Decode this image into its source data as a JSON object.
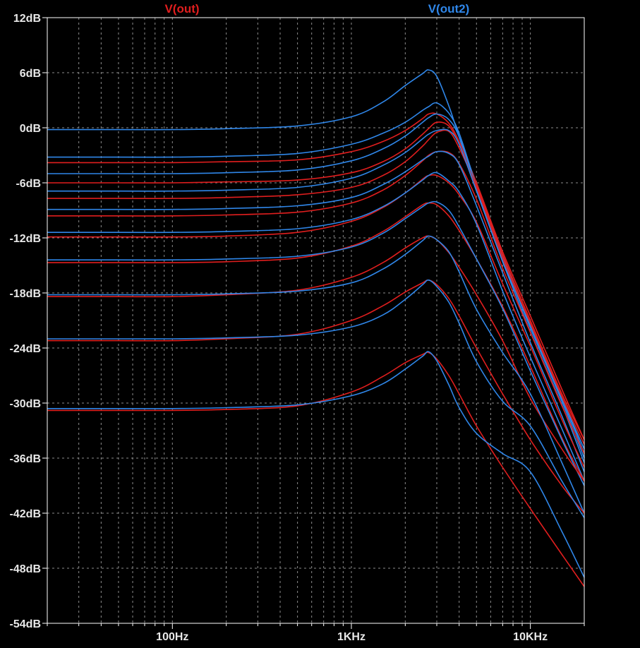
{
  "colors": {
    "background": "#000000",
    "frame": "#ffffff",
    "grid": "#8c8c8c",
    "tick_text": "#e8e8e8",
    "out": "#e01e1e",
    "out2": "#2f86e8"
  },
  "chart_data": {
    "type": "line",
    "title": "",
    "xlabel": "",
    "ylabel": "",
    "xscale": "log",
    "xlim_hz": [
      20,
      20000
    ],
    "ylim_db": [
      -54,
      12
    ],
    "grid": true,
    "legend_placement": "top",
    "legend": [
      "V(out)",
      "V(out2)"
    ],
    "x_ticks": [
      "100Hz",
      "1KHz",
      "10KHz"
    ],
    "y_ticks": [
      "12dB",
      "6dB",
      "0dB",
      "-6dB",
      "-12dB",
      "-18dB",
      "-24dB",
      "-30dB",
      "-36dB",
      "-42dB",
      "-48dB",
      "-54dB"
    ],
    "x_hz": [
      20,
      50,
      100,
      200,
      500,
      1000,
      1500,
      2000,
      2500,
      2700,
      3000,
      3500,
      4000,
      5000,
      7000,
      10000,
      15000,
      20000
    ],
    "series": [
      {
        "trace": "V(out2)",
        "values": [
          -0.2,
          -0.2,
          -0.2,
          -0.1,
          0.2,
          1.2,
          2.8,
          4.6,
          5.9,
          6.3,
          5.6,
          2.4,
          -1.0,
          -6.8,
          -14.5,
          -21.5,
          -29.5,
          -35.0
        ]
      },
      {
        "trace": "V(out)",
        "values": [
          -3.8,
          -3.8,
          -3.8,
          -3.7,
          -3.5,
          -2.6,
          -1.5,
          -0.3,
          1.0,
          1.5,
          1.5,
          0.5,
          -1.5,
          -6.0,
          -13.5,
          -20.5,
          -28.5,
          -34.0
        ]
      },
      {
        "trace": "V(out2)",
        "values": [
          -3.2,
          -3.2,
          -3.2,
          -3.1,
          -2.8,
          -1.8,
          -0.6,
          0.6,
          1.9,
          2.3,
          2.7,
          1.6,
          -0.6,
          -6.3,
          -14.0,
          -21.5,
          -29.5,
          -35.5
        ]
      },
      {
        "trace": "V(out)",
        "values": [
          -6.0,
          -6.0,
          -6.0,
          -5.9,
          -5.7,
          -4.9,
          -3.7,
          -2.3,
          -0.7,
          -0.1,
          0.6,
          0.2,
          -1.8,
          -6.2,
          -13.8,
          -21.0,
          -29.0,
          -34.0
        ]
      },
      {
        "trace": "V(out2)",
        "values": [
          -5.0,
          -5.0,
          -5.0,
          -4.9,
          -4.6,
          -3.6,
          -2.3,
          -0.9,
          0.6,
          1.1,
          1.5,
          0.9,
          -1.0,
          -6.5,
          -14.2,
          -21.8,
          -29.8,
          -36.0
        ]
      },
      {
        "trace": "V(out)",
        "values": [
          -7.7,
          -7.7,
          -7.7,
          -7.6,
          -7.3,
          -6.5,
          -5.2,
          -3.7,
          -2.0,
          -1.3,
          -0.5,
          -0.4,
          -2.2,
          -6.5,
          -14.2,
          -21.3,
          -29.3,
          -34.5
        ]
      },
      {
        "trace": "V(out2)",
        "values": [
          -6.9,
          -6.9,
          -6.9,
          -6.8,
          -6.5,
          -5.5,
          -4.1,
          -2.7,
          -1.2,
          -0.7,
          -0.3,
          -0.3,
          -1.8,
          -6.9,
          -14.6,
          -22.2,
          -30.2,
          -36.5
        ]
      },
      {
        "trace": "V(out)",
        "values": [
          -9.6,
          -9.6,
          -9.6,
          -9.5,
          -9.2,
          -8.2,
          -6.8,
          -5.2,
          -3.6,
          -3.0,
          -2.6,
          -2.7,
          -3.9,
          -7.8,
          -15.3,
          -22.3,
          -30.3,
          -35.5
        ]
      },
      {
        "trace": "V(out2)",
        "values": [
          -8.9,
          -8.9,
          -8.9,
          -8.8,
          -8.5,
          -7.6,
          -6.2,
          -4.8,
          -3.5,
          -3.1,
          -2.6,
          -2.8,
          -4.0,
          -8.5,
          -15.8,
          -23.4,
          -31.4,
          -37.5
        ]
      },
      {
        "trace": "V(out)",
        "values": [
          -11.9,
          -11.9,
          -11.9,
          -11.8,
          -11.4,
          -10.2,
          -8.7,
          -7.1,
          -5.6,
          -5.2,
          -5.2,
          -6.0,
          -7.3,
          -10.3,
          -17.0,
          -23.8,
          -31.8,
          -37.0
        ]
      },
      {
        "trace": "V(out2)",
        "values": [
          -11.4,
          -11.4,
          -11.4,
          -11.3,
          -11.0,
          -10.0,
          -8.6,
          -7.1,
          -5.7,
          -5.2,
          -4.9,
          -5.8,
          -7.0,
          -10.5,
          -17.8,
          -25.0,
          -32.8,
          -38.5
        ]
      },
      {
        "trace": "V(out)",
        "values": [
          -14.7,
          -14.7,
          -14.7,
          -14.6,
          -14.2,
          -12.9,
          -11.3,
          -9.7,
          -8.4,
          -8.2,
          -8.4,
          -9.6,
          -11.2,
          -14.3,
          -19.5,
          -26.0,
          -33.8,
          -38.5
        ]
      },
      {
        "trace": "V(out2)",
        "values": [
          -14.4,
          -14.4,
          -14.4,
          -14.3,
          -14.0,
          -13.0,
          -11.5,
          -9.9,
          -8.6,
          -8.2,
          -8.1,
          -9.0,
          -10.8,
          -14.3,
          -19.7,
          -26.5,
          -34.0,
          -39.0
        ]
      },
      {
        "trace": "V(out)",
        "values": [
          -18.4,
          -18.4,
          -18.4,
          -18.2,
          -17.7,
          -16.3,
          -14.7,
          -13.1,
          -12.0,
          -11.8,
          -12.2,
          -13.6,
          -15.2,
          -18.2,
          -23.2,
          -29.5,
          -35.0,
          -38.5
        ]
      },
      {
        "trace": "V(out2)",
        "values": [
          -18.2,
          -18.2,
          -18.2,
          -18.1,
          -17.8,
          -16.9,
          -15.4,
          -13.8,
          -12.3,
          -11.8,
          -12.2,
          -13.5,
          -15.7,
          -19.8,
          -24.5,
          -29.0,
          -36.5,
          -42.0
        ]
      },
      {
        "trace": "V(out)",
        "values": [
          -23.2,
          -23.2,
          -23.2,
          -23.0,
          -22.5,
          -21.0,
          -19.4,
          -17.9,
          -16.9,
          -16.6,
          -17.1,
          -18.6,
          -20.5,
          -24.0,
          -29.0,
          -34.0,
          -39.0,
          -42.0
        ]
      },
      {
        "trace": "V(out2)",
        "values": [
          -23.0,
          -23.0,
          -23.0,
          -22.9,
          -22.6,
          -21.7,
          -20.4,
          -18.7,
          -17.1,
          -16.6,
          -17.3,
          -19.0,
          -21.3,
          -25.5,
          -29.8,
          -32.5,
          -38.5,
          -42.5
        ]
      },
      {
        "trace": "V(out)",
        "values": [
          -30.8,
          -30.8,
          -30.8,
          -30.7,
          -30.3,
          -28.8,
          -27.1,
          -25.6,
          -24.7,
          -24.5,
          -25.2,
          -27.0,
          -29.0,
          -32.5,
          -37.0,
          -41.5,
          -46.5,
          -50.0
        ]
      },
      {
        "trace": "V(out2)",
        "values": [
          -30.6,
          -30.6,
          -30.6,
          -30.5,
          -30.2,
          -29.2,
          -27.9,
          -26.3,
          -24.9,
          -24.4,
          -25.4,
          -28.0,
          -30.5,
          -33.3,
          -35.5,
          -37.5,
          -44.0,
          -49.0
        ]
      }
    ]
  }
}
